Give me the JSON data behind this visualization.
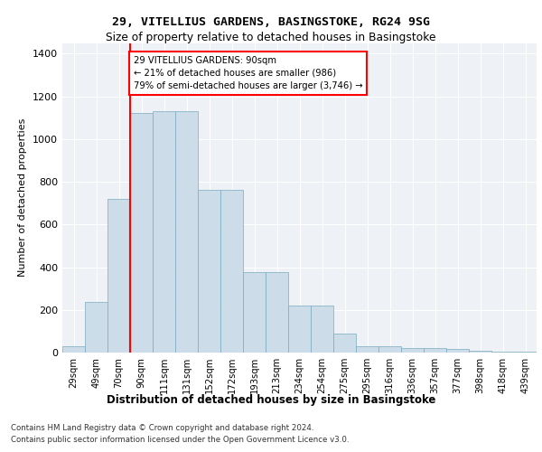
{
  "title1": "29, VITELLIUS GARDENS, BASINGSTOKE, RG24 9SG",
  "title2": "Size of property relative to detached houses in Basingstoke",
  "xlabel": "Distribution of detached houses by size in Basingstoke",
  "ylabel": "Number of detached properties",
  "categories": [
    "29sqm",
    "49sqm",
    "70sqm",
    "90sqm",
    "111sqm",
    "131sqm",
    "152sqm",
    "172sqm",
    "193sqm",
    "213sqm",
    "234sqm",
    "254sqm",
    "275sqm",
    "295sqm",
    "316sqm",
    "336sqm",
    "357sqm",
    "377sqm",
    "398sqm",
    "418sqm",
    "439sqm"
  ],
  "values": [
    28,
    235,
    720,
    1120,
    1130,
    1130,
    760,
    760,
    375,
    375,
    220,
    220,
    90,
    28,
    28,
    20,
    20,
    15,
    8,
    5,
    3
  ],
  "bar_color": "#ccdce8",
  "bar_edge_color": "#7aaabf",
  "vline_color": "red",
  "vline_index": 3,
  "annotation_text": "29 VITELLIUS GARDENS: 90sqm\n← 21% of detached houses are smaller (986)\n79% of semi-detached houses are larger (3,746) →",
  "annotation_box_color": "white",
  "annotation_box_edge": "red",
  "ylim": [
    0,
    1450
  ],
  "yticks": [
    0,
    200,
    400,
    600,
    800,
    1000,
    1200,
    1400
  ],
  "footer1": "Contains HM Land Registry data © Crown copyright and database right 2024.",
  "footer2": "Contains public sector information licensed under the Open Government Licence v3.0.",
  "bg_color": "#eef2f7",
  "grid_color": "white"
}
